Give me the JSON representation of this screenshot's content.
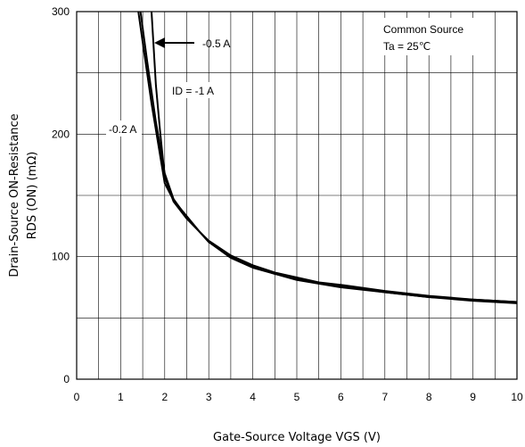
{
  "chart_data": {
    "type": "line",
    "title": "",
    "xlabel": "Gate-Source Voltage VGS (V)",
    "ylabel_line1": "Drain-Source ON-Resistance",
    "ylabel_line2": "RDS (ON)  (mΩ)",
    "xlim": [
      0,
      10
    ],
    "ylim": [
      0,
      300
    ],
    "x_ticks": [
      "0",
      "1",
      "2",
      "3",
      "4",
      "5",
      "6",
      "7",
      "8",
      "9",
      "10"
    ],
    "y_ticks": [
      "0",
      "100",
      "200",
      "300"
    ],
    "grid": true,
    "conditions": [
      "Common Source",
      "Ta = 25℃"
    ],
    "series": [
      {
        "name": "ID = -1 A",
        "x": [
          1.45,
          1.6,
          1.8,
          2.0,
          2.2,
          2.5,
          2.8,
          3.0,
          3.5,
          4.0,
          4.5,
          5.0,
          5.5,
          6.0,
          7.0,
          8.0,
          9.0,
          10.0
        ],
        "y": [
          300,
          260,
          210,
          168,
          147,
          132,
          120,
          113,
          101,
          93,
          87,
          83,
          79,
          77,
          72,
          68,
          65,
          63
        ]
      },
      {
        "name": "-0.5 A",
        "x": [
          1.7,
          1.8,
          1.9,
          2.0,
          2.2,
          2.5,
          2.8,
          3.0,
          3.5,
          4.0,
          4.5,
          5.0,
          5.5,
          6.0,
          7.0,
          8.0,
          9.0,
          10.0
        ],
        "y": [
          300,
          240,
          200,
          165,
          145,
          131,
          120,
          112,
          100,
          92,
          86,
          82,
          78,
          76,
          71,
          67,
          65,
          63
        ]
      },
      {
        "name": "-0.2 A",
        "x": [
          1.4,
          1.5,
          1.7,
          2.0,
          2.2,
          2.5,
          2.8,
          3.0,
          3.5,
          4.0,
          4.5,
          5.0,
          5.5,
          6.0,
          7.0,
          8.0,
          9.0,
          10.0
        ],
        "y": [
          300,
          275,
          225,
          160,
          146,
          133,
          120,
          112,
          99,
          91,
          86,
          81,
          78,
          75,
          71,
          67,
          64,
          62
        ]
      }
    ],
    "annotations": [
      "-0.5 A",
      "ID = -1 A",
      "-0.2 A"
    ]
  }
}
